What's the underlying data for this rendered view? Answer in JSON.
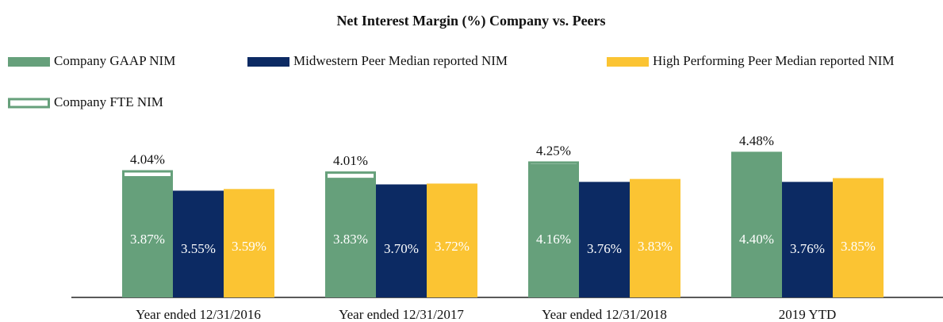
{
  "chart_data": {
    "type": "bar",
    "title": "Net Interest Margin (%) Company vs. Peers",
    "categories": [
      "Year ended 12/31/2016",
      "Year ended 12/31/2017",
      "Year ended 12/31/2018",
      "2019 YTD"
    ],
    "ylim": [
      1,
      4.6
    ],
    "series": [
      {
        "name": "Company GAAP NIM",
        "color": "#66a07b",
        "values": [
          3.87,
          3.83,
          4.16,
          4.4
        ],
        "value_labels": [
          "3.87%",
          "3.83%",
          "4.16%",
          "4.40%"
        ]
      },
      {
        "name": "Midwestern Peer Median reported NIM",
        "color": "#0c2a63",
        "values": [
          3.55,
          3.7,
          3.76,
          3.76
        ],
        "value_labels": [
          "3.55%",
          "3.70%",
          "3.76%",
          "3.76%"
        ]
      },
      {
        "name": "High Performing Peer Median reported NIM",
        "color": "#fbc433",
        "values": [
          3.59,
          3.72,
          3.83,
          3.85
        ],
        "value_labels": [
          "3.59%",
          "3.72%",
          "3.83%",
          "3.85%"
        ]
      },
      {
        "name": "Company FTE NIM",
        "color": "#66a07b",
        "style": "outline",
        "values": [
          4.04,
          4.01,
          4.25,
          4.48
        ],
        "value_labels": [
          "4.04%",
          "4.01%",
          "4.25%",
          "4.48%"
        ]
      }
    ]
  }
}
